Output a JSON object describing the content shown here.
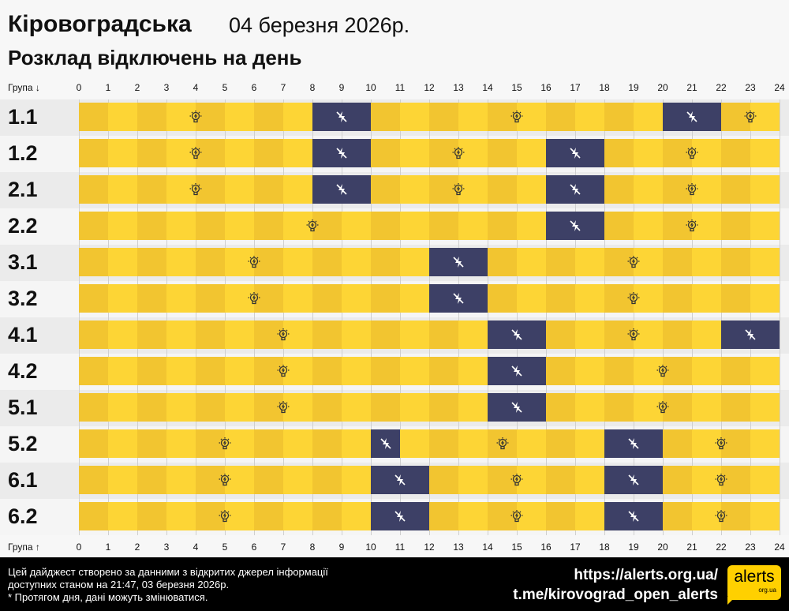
{
  "header": {
    "region": "Кіровоградська",
    "date": "04 березня 2026р.",
    "subtitle": "Розклад відключень на день"
  },
  "axis": {
    "top_label": "Група ↓",
    "bottom_label": "Група ↑",
    "ticks": [
      "0",
      "1",
      "2",
      "3",
      "4",
      "5",
      "6",
      "7",
      "8",
      "9",
      "10",
      "11",
      "12",
      "13",
      "14",
      "15",
      "16",
      "17",
      "18",
      "19",
      "20",
      "21",
      "22",
      "23",
      "24"
    ]
  },
  "colors": {
    "on_even": "#f2c530",
    "on_odd": "#fdd535",
    "outage": "#3d4066",
    "row_a": "#ebebeb",
    "row_b": "#f5f5f5"
  },
  "chart_data": {
    "type": "timeline",
    "x_range": [
      0,
      24
    ],
    "legend": {
      "on": "lightbulb-icon",
      "off": "no-power-icon"
    },
    "groups": [
      {
        "name": "1.1",
        "outages": [
          [
            8,
            10
          ],
          [
            20,
            22
          ]
        ]
      },
      {
        "name": "1.2",
        "outages": [
          [
            8,
            10
          ],
          [
            16,
            18
          ]
        ]
      },
      {
        "name": "2.1",
        "outages": [
          [
            8,
            10
          ],
          [
            16,
            18
          ]
        ]
      },
      {
        "name": "2.2",
        "outages": [
          [
            16,
            18
          ]
        ]
      },
      {
        "name": "3.1",
        "outages": [
          [
            12,
            14
          ]
        ]
      },
      {
        "name": "3.2",
        "outages": [
          [
            12,
            14
          ]
        ]
      },
      {
        "name": "4.1",
        "outages": [
          [
            14,
            16
          ],
          [
            22,
            24
          ]
        ]
      },
      {
        "name": "4.2",
        "outages": [
          [
            14,
            16
          ]
        ]
      },
      {
        "name": "5.1",
        "outages": [
          [
            14,
            16
          ]
        ]
      },
      {
        "name": "5.2",
        "outages": [
          [
            10,
            11
          ],
          [
            18,
            20
          ]
        ]
      },
      {
        "name": "6.1",
        "outages": [
          [
            10,
            12
          ],
          [
            18,
            20
          ]
        ]
      },
      {
        "name": "6.2",
        "outages": [
          [
            10,
            12
          ],
          [
            18,
            20
          ]
        ]
      }
    ]
  },
  "footer": {
    "line1": "Цей дайджест створено за данними з відкритих джерел інформації",
    "line2": "доступних станом на 21:47, 03 березня 2026р.",
    "line3": "* Протягом дня, дані можуть змінюватися.",
    "url": "https://alerts.org.ua/",
    "telegram": "t.me/kirovograd_open_alerts",
    "logo_main": "alerts",
    "logo_sub": "org.ua"
  }
}
